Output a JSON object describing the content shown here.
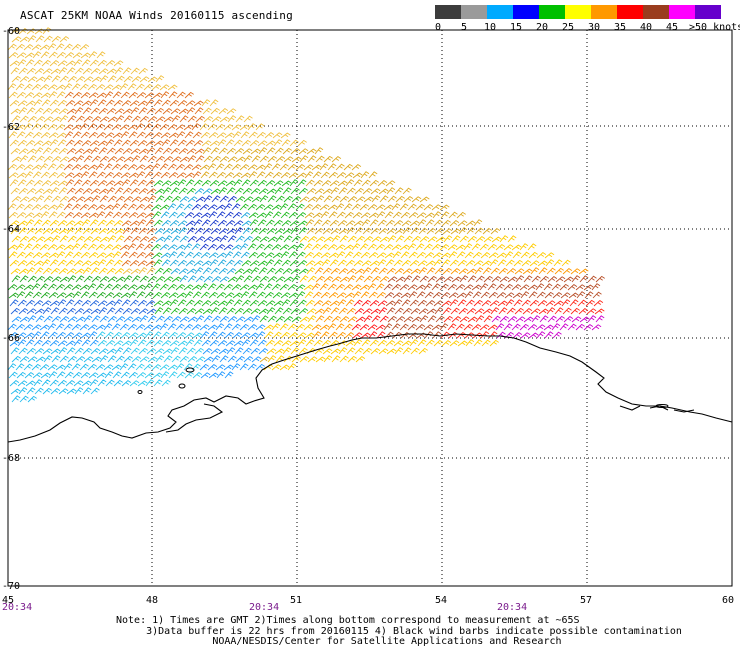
{
  "title": "ASCAT 25KM NOAA Winds 20160115 ascending",
  "legend": {
    "colors": [
      "#3c3c3c",
      "#9a9a9a",
      "#00aaff",
      "#0000ff",
      "#00c000",
      "#ffff00",
      "#ff9900",
      "#ff0000",
      "#9a3c1e",
      "#ff00ff",
      "#6600cc"
    ],
    "ticks": [
      "0",
      "5",
      "10",
      "15",
      "20",
      "25",
      "30",
      "35",
      "40",
      "45",
      ">50 knots"
    ]
  },
  "axes": {
    "lat_labels": [
      "-60",
      "-62",
      "-64",
      "-66",
      "-68",
      "-70"
    ],
    "lon_labels": [
      "45",
      "48",
      "51",
      "54",
      "57",
      "60"
    ],
    "time_labels": [
      "20:34",
      "20:34",
      "20:34"
    ]
  },
  "notes": {
    "line1": "Note: 1) Times are GMT 2)Times along bottom correspond to measurement at ~65S",
    "line2": "3)Data buffer is 22 hrs from 20160115 4) Black wind barbs indicate possible contamination",
    "line3": "NOAA/NESDIS/Center for Satellite Applications and Research"
  }
}
